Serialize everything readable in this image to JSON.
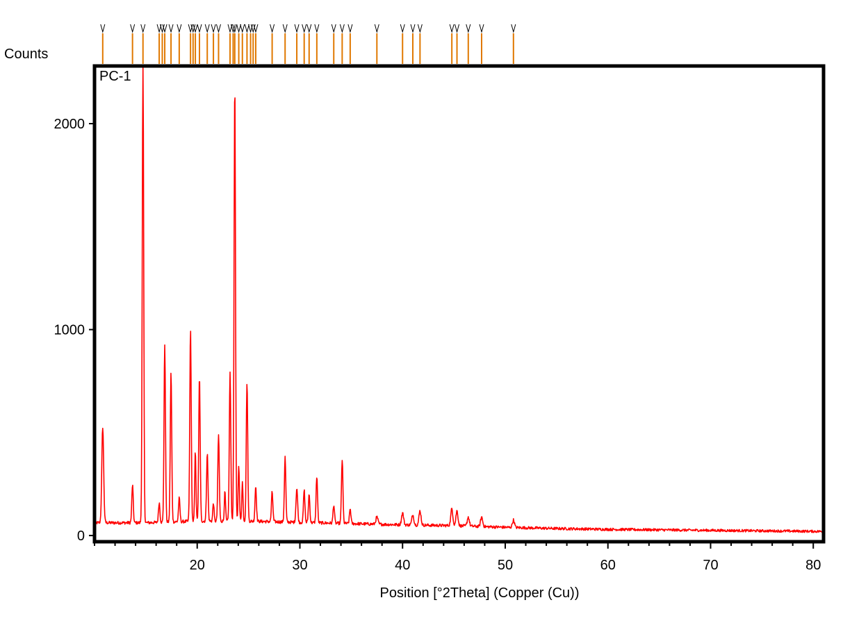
{
  "chart_data": {
    "type": "line",
    "title": "",
    "sample_label": "PC-1",
    "xlabel": "Position [°2Theta] (Copper (Cu))",
    "ylabel": "Counts",
    "xlim": [
      10,
      81
    ],
    "ylim": [
      -30,
      2280
    ],
    "x_ticks": [
      20,
      30,
      40,
      50,
      60,
      70,
      80
    ],
    "x_minor_step": 2,
    "y_ticks": [
      0,
      1000,
      2000
    ],
    "grid": false,
    "series_color": "#ff0000",
    "marker_color": "#e07800",
    "background": [
      [
        10,
        62
      ],
      [
        15,
        62
      ],
      [
        20,
        70
      ],
      [
        25,
        70
      ],
      [
        30,
        64
      ],
      [
        35,
        58
      ],
      [
        40,
        52
      ],
      [
        45,
        48
      ],
      [
        50,
        40
      ],
      [
        55,
        34
      ],
      [
        60,
        30
      ],
      [
        70,
        25
      ],
      [
        81,
        20
      ]
    ],
    "peaks": [
      {
        "x": 10.8,
        "y": 530,
        "w": 0.09
      },
      {
        "x": 13.7,
        "y": 245,
        "w": 0.07
      },
      {
        "x": 14.72,
        "y": 2280,
        "w": 0.07
      },
      {
        "x": 16.3,
        "y": 160,
        "w": 0.07
      },
      {
        "x": 16.84,
        "y": 930,
        "w": 0.07
      },
      {
        "x": 17.45,
        "y": 790,
        "w": 0.07
      },
      {
        "x": 18.25,
        "y": 180,
        "w": 0.07
      },
      {
        "x": 19.35,
        "y": 1000,
        "w": 0.07
      },
      {
        "x": 19.82,
        "y": 410,
        "w": 0.06
      },
      {
        "x": 20.22,
        "y": 770,
        "w": 0.07
      },
      {
        "x": 20.98,
        "y": 400,
        "w": 0.07
      },
      {
        "x": 21.58,
        "y": 160,
        "w": 0.06
      },
      {
        "x": 22.08,
        "y": 490,
        "w": 0.07
      },
      {
        "x": 22.7,
        "y": 210,
        "w": 0.06
      },
      {
        "x": 23.2,
        "y": 790,
        "w": 0.07
      },
      {
        "x": 23.66,
        "y": 2200,
        "w": 0.07
      },
      {
        "x": 24.05,
        "y": 350,
        "w": 0.06
      },
      {
        "x": 24.4,
        "y": 260,
        "w": 0.06
      },
      {
        "x": 24.85,
        "y": 750,
        "w": 0.07
      },
      {
        "x": 25.7,
        "y": 240,
        "w": 0.07
      },
      {
        "x": 27.3,
        "y": 210,
        "w": 0.07
      },
      {
        "x": 28.56,
        "y": 380,
        "w": 0.07
      },
      {
        "x": 29.7,
        "y": 230,
        "w": 0.08
      },
      {
        "x": 30.42,
        "y": 220,
        "w": 0.07
      },
      {
        "x": 30.9,
        "y": 200,
        "w": 0.07
      },
      {
        "x": 31.65,
        "y": 290,
        "w": 0.07
      },
      {
        "x": 33.3,
        "y": 150,
        "w": 0.07
      },
      {
        "x": 34.12,
        "y": 370,
        "w": 0.07
      },
      {
        "x": 34.9,
        "y": 130,
        "w": 0.07
      },
      {
        "x": 37.5,
        "y": 90,
        "w": 0.1
      },
      {
        "x": 40.0,
        "y": 110,
        "w": 0.1
      },
      {
        "x": 41.0,
        "y": 100,
        "w": 0.1
      },
      {
        "x": 41.7,
        "y": 120,
        "w": 0.1
      },
      {
        "x": 44.8,
        "y": 130,
        "w": 0.1
      },
      {
        "x": 45.3,
        "y": 120,
        "w": 0.1
      },
      {
        "x": 46.4,
        "y": 90,
        "w": 0.1
      },
      {
        "x": 47.7,
        "y": 90,
        "w": 0.1
      },
      {
        "x": 50.8,
        "y": 75,
        "w": 0.1
      }
    ],
    "reference_markers": [
      10.8,
      13.7,
      14.72,
      16.3,
      16.6,
      16.84,
      17.45,
      18.25,
      19.35,
      19.6,
      19.82,
      20.22,
      20.98,
      21.58,
      22.08,
      23.2,
      23.5,
      23.66,
      24.05,
      24.4,
      24.85,
      25.2,
      25.45,
      25.7,
      27.3,
      28.56,
      29.7,
      30.42,
      30.9,
      31.65,
      33.3,
      34.12,
      34.9,
      37.5,
      40.0,
      41.0,
      41.7,
      44.8,
      45.3,
      46.4,
      47.7,
      50.8
    ]
  }
}
